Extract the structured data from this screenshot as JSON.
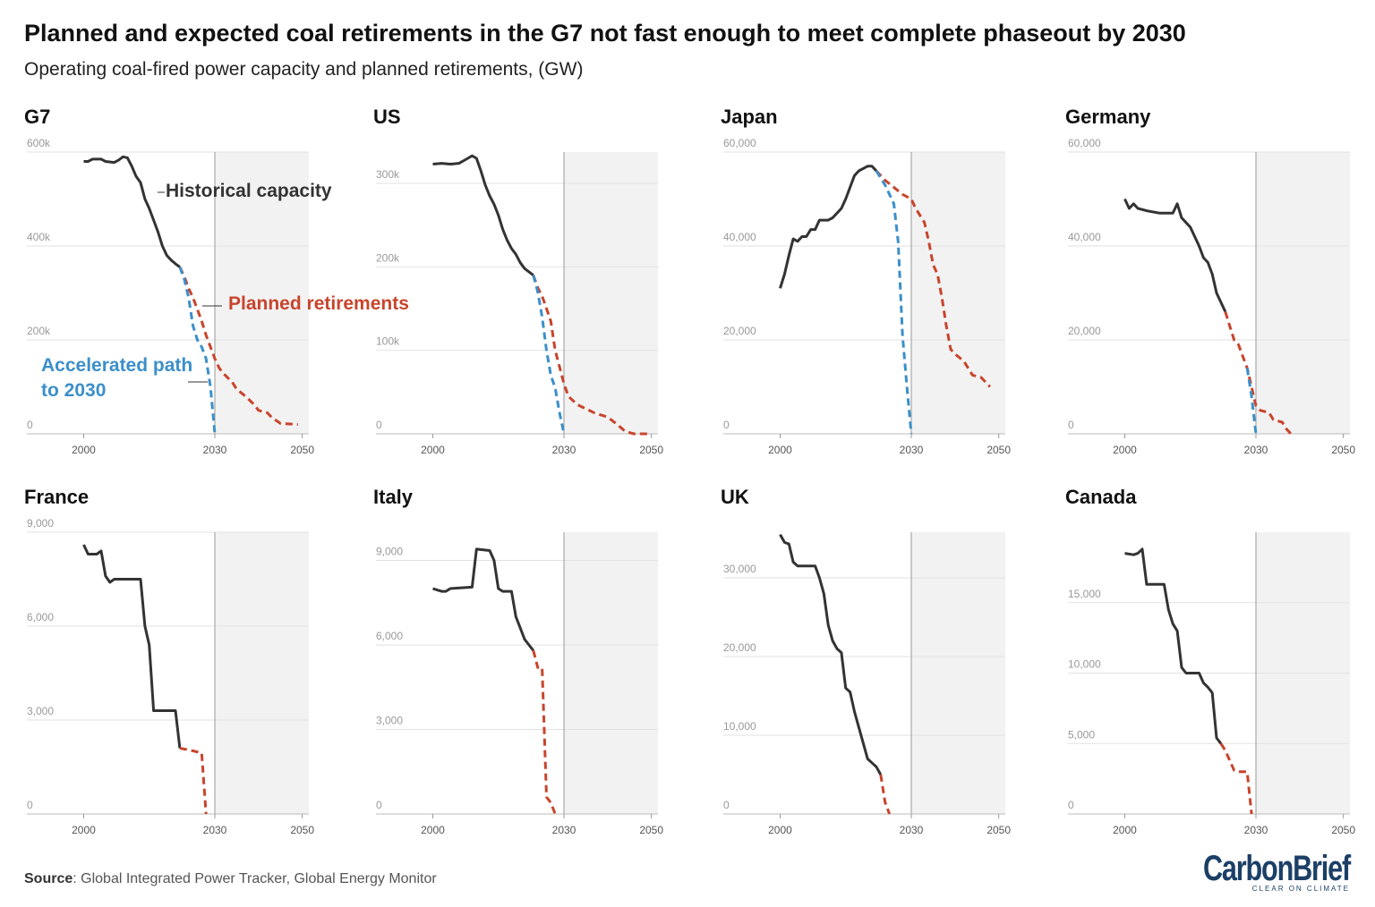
{
  "title": "Planned and expected coal retirements in the G7 not fast enough to meet complete phaseout by 2030",
  "subtitle": "Operating coal-fired power capacity and planned retirements, (GW)",
  "source_label": "Source",
  "source": ": Global Integrated Power Tracker, Global Energy Monitor",
  "logo": "CarbonBrief",
  "logo_tagline": "CLEAR ON CLIMATE",
  "chart_data": [
    {
      "type": "line",
      "title": "G7",
      "xlim": [
        1987,
        2051.5
      ],
      "xticks": [
        2000,
        2030,
        2050
      ],
      "ylim": [
        0,
        600000
      ],
      "yticks": [
        0,
        {
          "value": 200000,
          "label": "200k"
        },
        {
          "value": 400000,
          "label": "400k"
        },
        {
          "value": 600000,
          "label": "600k"
        }
      ],
      "grid": true,
      "shade_from": 2030,
      "series": [
        {
          "name": "Historical capacity",
          "color": "#333333",
          "dashed": false,
          "x": [
            2000,
            2001,
            2002,
            2004,
            2005,
            2007,
            2008,
            2009,
            2010,
            2011,
            2012,
            2013,
            2014,
            2015,
            2016,
            2017,
            2018,
            2019,
            2020,
            2021,
            2022
          ],
          "values": [
            580000,
            580000,
            585000,
            585000,
            580000,
            578000,
            583000,
            590000,
            588000,
            570000,
            548000,
            535000,
            500000,
            480000,
            455000,
            430000,
            400000,
            380000,
            370000,
            362000,
            355000
          ]
        },
        {
          "name": "Planned retirements",
          "color": "#c8442c",
          "dashed": true,
          "x": [
            2022,
            2023,
            2024,
            2025,
            2026,
            2027,
            2028,
            2029,
            2030,
            2031,
            2032,
            2034,
            2035,
            2037,
            2039,
            2040,
            2042,
            2043,
            2045,
            2049
          ],
          "values": [
            355000,
            335000,
            310000,
            290000,
            265000,
            240000,
            210000,
            185000,
            160000,
            140000,
            128000,
            110000,
            95000,
            80000,
            62000,
            50000,
            45000,
            35000,
            22000,
            20000
          ]
        },
        {
          "name": "Accelerated path to 2030",
          "color": "#3b8fc9",
          "dashed": true,
          "x": [
            2022,
            2023,
            2024,
            2025,
            2026,
            2027,
            2028,
            2029,
            2030
          ],
          "values": [
            355000,
            330000,
            290000,
            230000,
            200000,
            185000,
            160000,
            100000,
            0
          ]
        }
      ]
    },
    {
      "type": "line",
      "title": "US",
      "xlim": [
        1987,
        2051.5
      ],
      "xticks": [
        2000,
        2030,
        2050
      ],
      "ylim": [
        0,
        337500
      ],
      "yticks": [
        0,
        {
          "value": 100000,
          "label": "100k"
        },
        {
          "value": 200000,
          "label": "200k"
        },
        {
          "value": 300000,
          "label": "300k"
        }
      ],
      "grid": true,
      "shade_from": 2030,
      "series": [
        {
          "color": "#333333",
          "dashed": false,
          "x": [
            2000,
            2002,
            2004,
            2006,
            2008,
            2009,
            2010,
            2011,
            2012,
            2013,
            2014,
            2015,
            2016,
            2017,
            2018,
            2019,
            2020,
            2021,
            2022,
            2023
          ],
          "values": [
            323000,
            324000,
            323000,
            324000,
            330000,
            333000,
            330000,
            315000,
            298000,
            285000,
            275000,
            262000,
            245000,
            232000,
            222000,
            215000,
            205000,
            198000,
            194000,
            190000
          ]
        },
        {
          "color": "#c8442c",
          "dashed": true,
          "x": [
            2023,
            2024,
            2025,
            2026,
            2027,
            2028,
            2029,
            2030,
            2031,
            2033,
            2035,
            2037,
            2040,
            2042,
            2044,
            2046,
            2049
          ],
          "values": [
            190000,
            175000,
            165000,
            150000,
            135000,
            100000,
            80000,
            60000,
            45000,
            35000,
            30000,
            25000,
            20000,
            12000,
            3000,
            0,
            0
          ]
        },
        {
          "color": "#3b8fc9",
          "dashed": true,
          "x": [
            2023,
            2024,
            2025,
            2026,
            2027,
            2028,
            2029,
            2030
          ],
          "values": [
            190000,
            170000,
            140000,
            100000,
            70000,
            55000,
            25000,
            0
          ]
        }
      ]
    },
    {
      "type": "line",
      "title": "Japan",
      "xlim": [
        1987,
        2051.5
      ],
      "xticks": [
        2000,
        2030,
        2050
      ],
      "ylim": [
        0,
        60000
      ],
      "yticks": [
        0,
        {
          "value": 20000,
          "label": "20,000"
        },
        {
          "value": 40000,
          "label": "40,000"
        },
        {
          "value": 60000,
          "label": "60,000"
        }
      ],
      "grid": true,
      "shade_from": 2030,
      "series": [
        {
          "color": "#333333",
          "dashed": false,
          "x": [
            2000,
            2001,
            2002,
            2003,
            2004,
            2005,
            2006,
            2007,
            2008,
            2009,
            2010,
            2011,
            2012,
            2013,
            2014,
            2015,
            2016,
            2017,
            2018,
            2019,
            2020,
            2021,
            2022
          ],
          "values": [
            31000,
            34000,
            38000,
            41500,
            41000,
            42000,
            42000,
            43500,
            43500,
            45500,
            45500,
            45500,
            46000,
            47000,
            48000,
            50000,
            52500,
            55000,
            56000,
            56500,
            57000,
            57000,
            56000
          ]
        },
        {
          "color": "#c8442c",
          "dashed": true,
          "x": [
            2022,
            2024,
            2026,
            2028,
            2030,
            2031,
            2033,
            2034,
            2035,
            2036,
            2037,
            2038,
            2039,
            2040,
            2042,
            2044,
            2046,
            2048
          ],
          "values": [
            56000,
            54000,
            52500,
            51000,
            50000,
            48000,
            45000,
            41000,
            36000,
            34000,
            29000,
            23000,
            18000,
            17000,
            15500,
            12500,
            12000,
            10000
          ]
        },
        {
          "color": "#3b8fc9",
          "dashed": true,
          "x": [
            2022,
            2024,
            2026,
            2027,
            2028,
            2029,
            2030
          ],
          "values": [
            56000,
            53000,
            49000,
            41000,
            21000,
            10000,
            0
          ]
        }
      ]
    },
    {
      "type": "line",
      "title": "Germany",
      "xlim": [
        1987,
        2051.5
      ],
      "xticks": [
        2000,
        2030,
        2050
      ],
      "ylim": [
        0,
        60000
      ],
      "yticks": [
        0,
        {
          "value": 20000,
          "label": "20,000"
        },
        {
          "value": 40000,
          "label": "40,000"
        },
        {
          "value": 60000,
          "label": "60,000"
        }
      ],
      "grid": true,
      "shade_from": 2030,
      "series": [
        {
          "color": "#333333",
          "dashed": false,
          "x": [
            2000,
            2001,
            2002,
            2003,
            2005,
            2008,
            2011,
            2012,
            2013,
            2014,
            2015,
            2016,
            2017,
            2018,
            2019,
            2020,
            2021,
            2022,
            2023
          ],
          "values": [
            50000,
            48000,
            49000,
            48000,
            47500,
            47000,
            47000,
            49000,
            46000,
            45000,
            44000,
            42000,
            40000,
            37500,
            36500,
            34000,
            30000,
            28000,
            26000
          ]
        },
        {
          "color": "#c8442c",
          "dashed": true,
          "x": [
            2023,
            2024,
            2025,
            2026,
            2027,
            2028,
            2029,
            2030,
            2031,
            2033,
            2034,
            2036,
            2037,
            2038
          ],
          "values": [
            26000,
            23000,
            20000,
            19000,
            16500,
            14000,
            10000,
            6000,
            5000,
            4500,
            3000,
            2500,
            1000,
            0
          ]
        },
        {
          "color": "#3b8fc9",
          "dashed": true,
          "x": [
            2028,
            2029,
            2030
          ],
          "values": [
            14000,
            8000,
            0
          ]
        }
      ]
    },
    {
      "type": "line",
      "title": "France",
      "xlim": [
        1987,
        2051.5
      ],
      "xticks": [
        2000,
        2030,
        2050
      ],
      "ylim": [
        0,
        9000
      ],
      "yticks": [
        0,
        {
          "value": 3000,
          "label": "3,000"
        },
        {
          "value": 6000,
          "label": "6,000"
        },
        {
          "value": 9000,
          "label": "9,000"
        }
      ],
      "grid": true,
      "shade_from": 2030,
      "series": [
        {
          "color": "#333333",
          "dashed": false,
          "x": [
            2000,
            2001,
            2003,
            2004,
            2005,
            2006,
            2007,
            2013,
            2014,
            2015,
            2016,
            2021,
            2022
          ],
          "values": [
            8600,
            8300,
            8300,
            8400,
            7600,
            7400,
            7500,
            7500,
            6000,
            5400,
            3300,
            3300,
            2100
          ]
        },
        {
          "color": "#c8442c",
          "dashed": true,
          "x": [
            2022,
            2024,
            2027,
            2028
          ],
          "values": [
            2100,
            2050,
            1950,
            0
          ]
        }
      ]
    },
    {
      "type": "line",
      "title": "Italy",
      "xlim": [
        1987,
        2051.5
      ],
      "xticks": [
        2000,
        2030,
        2050
      ],
      "ylim": [
        0,
        10000
      ],
      "yticks": [
        0,
        {
          "value": 3000,
          "label": "3,000"
        },
        {
          "value": 6000,
          "label": "6,000"
        },
        {
          "value": 9000,
          "label": "9,000"
        }
      ],
      "grid": true,
      "shade_from": 2030,
      "series": [
        {
          "color": "#333333",
          "dashed": false,
          "x": [
            2000,
            2001,
            2002,
            2003,
            2004,
            2009,
            2010,
            2013,
            2014,
            2015,
            2016,
            2018,
            2019,
            2020,
            2021,
            2022,
            2023
          ],
          "values": [
            8000,
            7950,
            7900,
            7900,
            8000,
            8050,
            9400,
            9350,
            9000,
            8000,
            7900,
            7900,
            7000,
            6600,
            6200,
            6000,
            5800
          ]
        },
        {
          "color": "#c8442c",
          "dashed": true,
          "x": [
            2023,
            2024,
            2025,
            2026,
            2027,
            2028
          ],
          "values": [
            5800,
            5200,
            5200,
            600,
            400,
            0
          ]
        }
      ]
    },
    {
      "type": "line",
      "title": "UK",
      "xlim": [
        1987,
        2051.5
      ],
      "xticks": [
        2000,
        2030,
        2050
      ],
      "ylim": [
        0,
        35800
      ],
      "yticks": [
        0,
        {
          "value": 10000,
          "label": "10,000"
        },
        {
          "value": 20000,
          "label": "20,000"
        },
        {
          "value": 30000,
          "label": "30,000"
        }
      ],
      "grid": true,
      "shade_from": 2030,
      "series": [
        {
          "color": "#333333",
          "dashed": false,
          "x": [
            2000,
            2001,
            2002,
            2003,
            2004,
            2008,
            2009,
            2010,
            2011,
            2012,
            2013,
            2014,
            2015,
            2016,
            2017,
            2018,
            2019,
            2020,
            2021,
            2022,
            2023
          ],
          "values": [
            35500,
            34500,
            34300,
            32000,
            31500,
            31500,
            30000,
            28000,
            24000,
            22000,
            21000,
            20500,
            16000,
            15500,
            13000,
            11000,
            9000,
            7000,
            6500,
            6000,
            5000
          ]
        },
        {
          "color": "#c8442c",
          "dashed": true,
          "x": [
            2023,
            2024,
            2025
          ],
          "values": [
            5000,
            1500,
            0
          ]
        }
      ]
    },
    {
      "type": "line",
      "title": "Canada",
      "xlim": [
        1987,
        2051.5
      ],
      "xticks": [
        2000,
        2030,
        2050
      ],
      "ylim": [
        0,
        20000
      ],
      "yticks": [
        0,
        {
          "value": 5000,
          "label": "5,000"
        },
        {
          "value": 10000,
          "label": "10,000"
        },
        {
          "value": 15000,
          "label": "15,000"
        }
      ],
      "grid": true,
      "shade_from": 2030,
      "series": [
        {
          "color": "#333333",
          "dashed": false,
          "x": [
            2000,
            2002,
            2003,
            2004,
            2005,
            2009,
            2010,
            2011,
            2012,
            2013,
            2014,
            2017,
            2018,
            2019,
            2020,
            2021,
            2022
          ],
          "values": [
            18500,
            18400,
            18500,
            18800,
            16300,
            16300,
            14500,
            13500,
            13000,
            10400,
            10000,
            10000,
            9300,
            9000,
            8600,
            5400,
            5000
          ]
        },
        {
          "color": "#c8442c",
          "dashed": true,
          "x": [
            2022,
            2023,
            2024,
            2025,
            2026,
            2028,
            2029
          ],
          "values": [
            5000,
            4500,
            3800,
            3100,
            3000,
            3000,
            0
          ]
        }
      ]
    }
  ]
}
